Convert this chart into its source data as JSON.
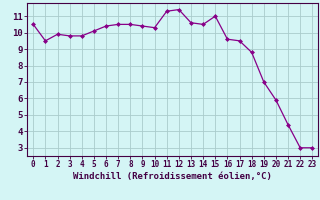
{
  "x": [
    0,
    1,
    2,
    3,
    4,
    5,
    6,
    7,
    8,
    9,
    10,
    11,
    12,
    13,
    14,
    15,
    16,
    17,
    18,
    19,
    20,
    21,
    22,
    23
  ],
  "y": [
    10.5,
    9.5,
    9.9,
    9.8,
    9.8,
    10.1,
    10.4,
    10.5,
    10.5,
    10.4,
    10.3,
    11.3,
    11.4,
    10.6,
    10.5,
    11.0,
    9.6,
    9.5,
    8.8,
    7.0,
    5.9,
    4.4,
    3.0,
    3.0
  ],
  "line_color": "#880088",
  "marker": "D",
  "marker_size": 2.0,
  "bg_color": "#d4f5f5",
  "grid_color": "#aacccc",
  "xlabel": "Windchill (Refroidissement éolien,°C)",
  "xlabel_color": "#440044",
  "xlabel_fontsize": 6.5,
  "xtick_labels": [
    "0",
    "1",
    "2",
    "3",
    "4",
    "5",
    "6",
    "7",
    "8",
    "9",
    "10",
    "11",
    "12",
    "13",
    "14",
    "15",
    "16",
    "17",
    "18",
    "19",
    "20",
    "21",
    "22",
    "23"
  ],
  "ytick_values": [
    3,
    4,
    5,
    6,
    7,
    8,
    9,
    10,
    11
  ],
  "ylim": [
    2.5,
    11.8
  ],
  "xlim": [
    -0.5,
    23.5
  ],
  "xtick_fontsize": 5.5,
  "ytick_fontsize": 6.5,
  "axis_color": "#440044",
  "tick_color": "#440044",
  "spine_color": "#440044",
  "linewidth": 0.9
}
